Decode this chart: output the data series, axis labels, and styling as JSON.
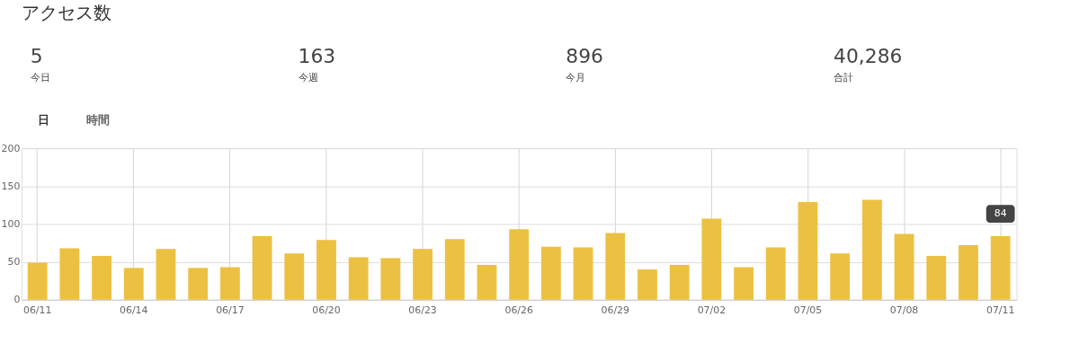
{
  "chart_data": {
    "type": "bar",
    "title": "アクセス数",
    "annotations": [
      "5",
      "今日",
      "163",
      "今週",
      "896",
      "今月",
      "40,286",
      "合計",
      "日",
      "時間",
      {
        "text": "84",
        "x": "07/11",
        "y": 84
      }
    ],
    "categories": [
      "06/11",
      null,
      null,
      "06/14",
      null,
      null,
      "06/17",
      null,
      null,
      "06/20",
      null,
      null,
      "06/23",
      null,
      null,
      "06/26",
      null,
      null,
      "06/29",
      null,
      null,
      "07/02",
      null,
      null,
      "07/05",
      null,
      null,
      "07/08",
      null,
      null,
      "07/11"
    ],
    "values": [
      49,
      68,
      58,
      42,
      67,
      42,
      43,
      84,
      61,
      79,
      56,
      55,
      67,
      80,
      46,
      93,
      70,
      69,
      88,
      40,
      46,
      107,
      43,
      69,
      129,
      61,
      132,
      87,
      58,
      72,
      84
    ],
    "color": "#ecc142",
    "ylim": [
      0,
      200
    ],
    "yticks": [
      0,
      50,
      100,
      150,
      200
    ],
    "grid": true
  }
}
